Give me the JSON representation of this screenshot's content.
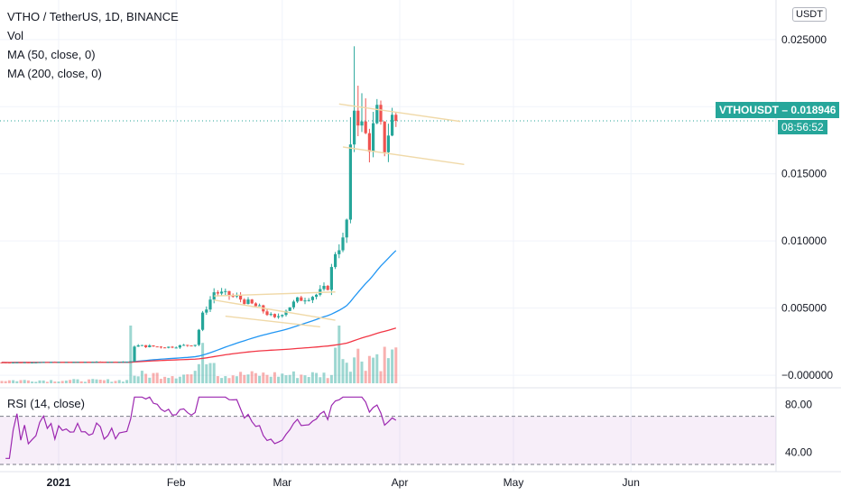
{
  "header": {
    "symbol_line": "VTHO / TetherUS, 1D, BINANCE",
    "vol_label": "Vol",
    "ma50_label": "MA (50, close, 0)",
    "ma200_label": "MA (200, close, 0)",
    "currency_button": "USDT",
    "rsi_label": "RSI (14, close)"
  },
  "price_tag": {
    "ticker": "VTHOUSDT",
    "separator": "–",
    "price": "0.018946",
    "countdown": "08:56:52",
    "color": "#26a69a"
  },
  "colors": {
    "up": "#26a69a",
    "down": "#ef5350",
    "ma50": "#2196f3",
    "ma200": "#f23645",
    "rsi": "#9c27b0",
    "rsi_band": "#9c27b0",
    "trendline": "#f0d9a8"
  },
  "chart_data": {
    "type": "candlestick",
    "price_axis": {
      "ylim": [
        -0.0006,
        0.0262
      ],
      "ticks": [
        "0.025000",
        "0.020000",
        "0.015000",
        "0.010000",
        "0.005000",
        "−0.000000"
      ],
      "tick_values": [
        0.025,
        0.02,
        0.015,
        0.01,
        0.005,
        0.0
      ]
    },
    "x_axis": {
      "labels": [
        "2021",
        "Feb",
        "Mar",
        "Apr",
        "May",
        "Jun"
      ],
      "label_days": [
        15,
        46,
        74,
        105,
        135,
        166
      ]
    },
    "candles": {
      "start_day": 0,
      "end_day": 104,
      "last_close": 0.018946
    },
    "volume": {
      "visible": true
    },
    "moving_averages": [
      {
        "name": "MA (50, close, 0)",
        "color": "#2196f3"
      },
      {
        "name": "MA (200, close, 0)",
        "color": "#f23645"
      }
    ],
    "trendlines": [
      {
        "from": [
          56,
          0.0059
        ],
        "to": [
          88,
          0.0062
        ]
      },
      {
        "from": [
          56,
          0.0056
        ],
        "to": [
          88,
          0.0041
        ]
      },
      {
        "from": [
          59,
          0.0044
        ],
        "to": [
          84,
          0.0036
        ]
      },
      {
        "from": [
          89,
          0.0202
        ],
        "to": [
          121,
          0.0189
        ]
      },
      {
        "from": [
          90,
          0.017
        ],
        "to": [
          122,
          0.0157
        ]
      }
    ],
    "rsi": {
      "name": "RSI (14, close)",
      "ylim": [
        30,
        90
      ],
      "ticks": [
        "80.00",
        "40.00"
      ],
      "tick_values": [
        80,
        40
      ],
      "upper_band": 70,
      "lower_band": 30
    }
  }
}
